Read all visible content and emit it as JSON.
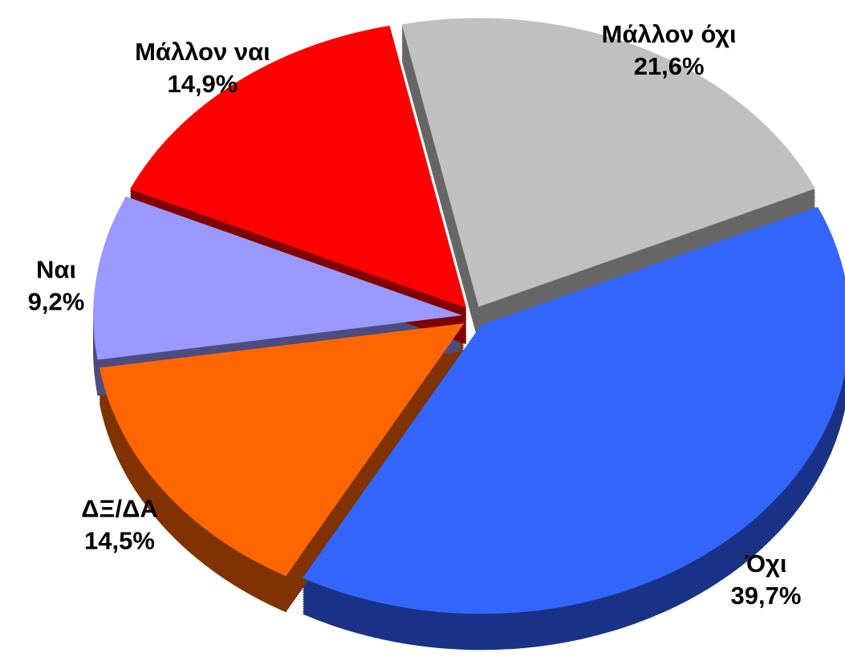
{
  "chart_data": {
    "type": "pie",
    "categories": [
      "Μάλλον όχι",
      "Όχι",
      "ΔΞ/ΔΑ",
      "Ναι",
      "Μάλλον ναι"
    ],
    "values": [
      21.6,
      39.7,
      14.5,
      9.2,
      14.9
    ],
    "value_labels": [
      "21,6%",
      "39,7%",
      "14,5%",
      "9,2%",
      "14,9%"
    ],
    "colors": [
      "#c0c0c0",
      "#3366ff",
      "#ff6600",
      "#9999ff",
      "#ff0000"
    ],
    "side_colors": [
      "#666666",
      "#1a3388",
      "#803300",
      "#4d4d80",
      "#800000"
    ]
  }
}
